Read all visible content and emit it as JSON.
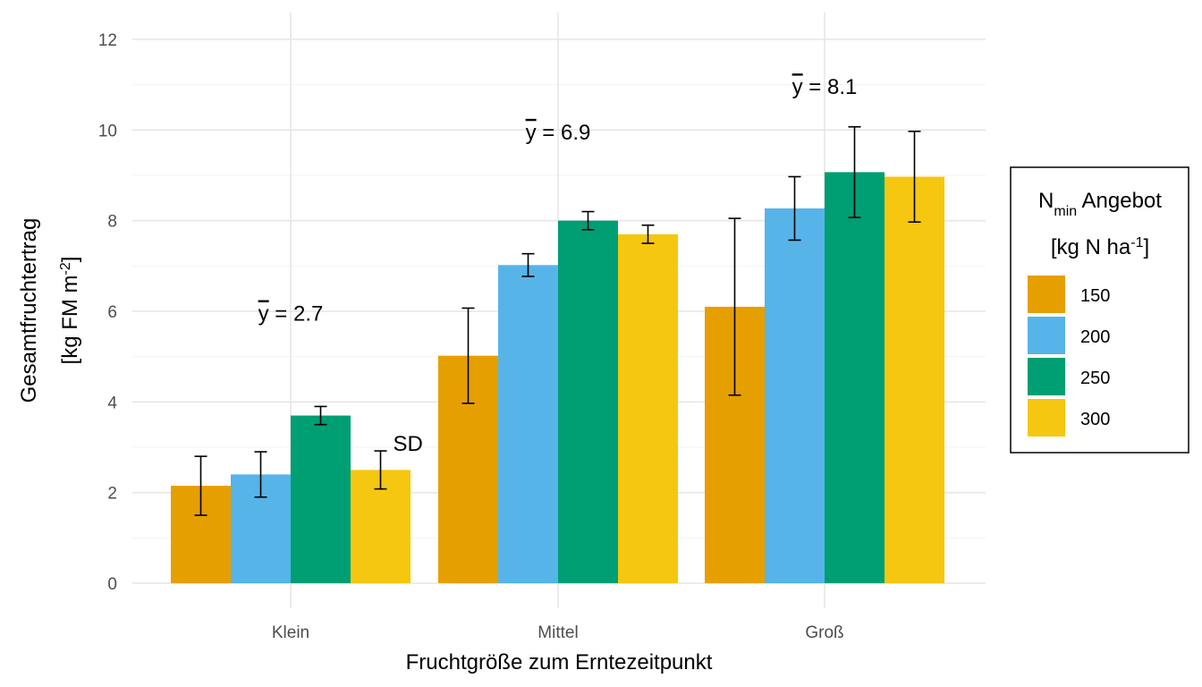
{
  "chart_data": {
    "type": "bar",
    "categories": [
      "Klein",
      "Mittel",
      "Groß"
    ],
    "series": [
      {
        "name": "150",
        "color": "#E69F00",
        "values": [
          2.15,
          5.02,
          6.1
        ],
        "sd": [
          0.65,
          1.05,
          1.95
        ]
      },
      {
        "name": "200",
        "color": "#56B4E9",
        "values": [
          2.4,
          7.02,
          8.27
        ],
        "sd": [
          0.5,
          0.25,
          0.7
        ]
      },
      {
        "name": "250",
        "color": "#009E73",
        "values": [
          3.7,
          8.0,
          9.07
        ],
        "sd": [
          0.2,
          0.2,
          1.0
        ]
      },
      {
        "name": "300",
        "color": "#F5C710",
        "values": [
          2.5,
          7.7,
          8.97
        ],
        "sd": [
          0.42,
          0.2,
          1.0
        ]
      }
    ],
    "ylim": [
      0,
      12
    ],
    "yticks": [
      0,
      2,
      4,
      6,
      8,
      10,
      12
    ],
    "xlabel": "Fruchtgröße zum Erntezeitpunkt",
    "ylabel": {
      "line1": "Gesamtfruchtertrag",
      "line2_prefix": "[kg FM m",
      "line2_sup": "-2",
      "line2_suffix": "]"
    },
    "means": [
      {
        "category": "Klein",
        "symbol": "y",
        "text": " = 2.7",
        "y": 5.95
      },
      {
        "category": "Mittel",
        "symbol": "y",
        "text": " = 6.9",
        "y": 9.95
      },
      {
        "category": "Groß",
        "symbol": "y",
        "text": " = 8.1",
        "y": 10.95
      }
    ],
    "sd_label": "SD",
    "grid": true,
    "legend": {
      "placement": "right",
      "title_n": "N",
      "title_sub": "min",
      "title_rest": " Angebot",
      "unit_prefix": "[kg N ha",
      "unit_sup": "-1",
      "unit_suffix": "]"
    }
  }
}
